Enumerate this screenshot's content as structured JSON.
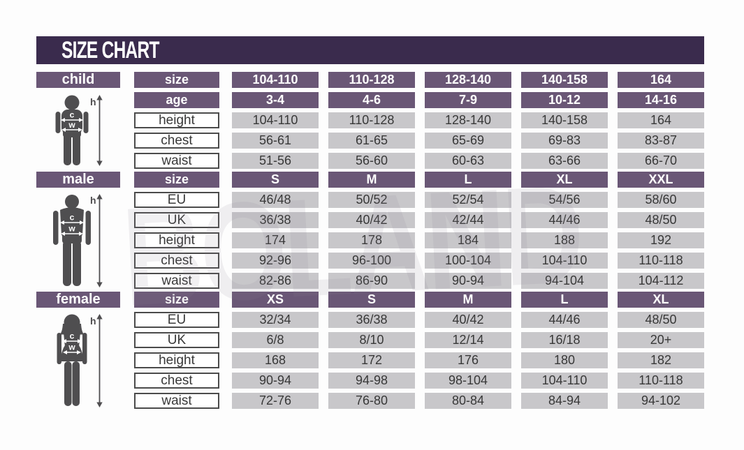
{
  "title": "SIZE CHART",
  "watermark": "BOLAND",
  "colors": {
    "background": "#fdfdfd",
    "title_bar": "#3a2b4d",
    "header_purple": "#6a5776",
    "cell_gray": "#c8c7ca",
    "label_border": "#4b4b4b",
    "text_dark": "#383838",
    "figure_gray": "#4f4e50"
  },
  "figure_legend": {
    "height": "h",
    "chest": "c",
    "waist": "w"
  },
  "chart_data": {
    "type": "table",
    "title": "SIZE CHART",
    "tables": [
      {
        "name": "child",
        "rows": [
          {
            "label": "size",
            "type": "header",
            "values": [
              "104-110",
              "110-128",
              "128-140",
              "140-158",
              "164"
            ]
          },
          {
            "label": "age",
            "type": "header",
            "values": [
              "3-4",
              "4-6",
              "7-9",
              "10-12",
              "14-16"
            ]
          },
          {
            "label": "height",
            "type": "data",
            "values": [
              "104-110",
              "110-128",
              "128-140",
              "140-158",
              "164"
            ]
          },
          {
            "label": "chest",
            "type": "data",
            "values": [
              "56-61",
              "61-65",
              "65-69",
              "69-83",
              "83-87"
            ]
          },
          {
            "label": "waist",
            "type": "data",
            "values": [
              "51-56",
              "56-60",
              "60-63",
              "63-66",
              "66-70"
            ]
          }
        ]
      },
      {
        "name": "male",
        "rows": [
          {
            "label": "size",
            "type": "header",
            "values": [
              "S",
              "M",
              "L",
              "XL",
              "XXL"
            ]
          },
          {
            "label": "EU",
            "type": "data",
            "values": [
              "46/48",
              "50/52",
              "52/54",
              "54/56",
              "58/60"
            ]
          },
          {
            "label": "UK",
            "type": "data",
            "values": [
              "36/38",
              "40/42",
              "42/44",
              "44/46",
              "48/50"
            ]
          },
          {
            "label": "height",
            "type": "data",
            "values": [
              "174",
              "178",
              "184",
              "188",
              "192"
            ]
          },
          {
            "label": "chest",
            "type": "data",
            "values": [
              "92-96",
              "96-100",
              "100-104",
              "104-110",
              "110-118"
            ]
          },
          {
            "label": "waist",
            "type": "data",
            "values": [
              "82-86",
              "86-90",
              "90-94",
              "94-104",
              "104-112"
            ]
          }
        ]
      },
      {
        "name": "female",
        "rows": [
          {
            "label": "size",
            "type": "header",
            "values": [
              "XS",
              "S",
              "M",
              "L",
              "XL"
            ]
          },
          {
            "label": "EU",
            "type": "data",
            "values": [
              "32/34",
              "36/38",
              "40/42",
              "44/46",
              "48/50"
            ]
          },
          {
            "label": "UK",
            "type": "data",
            "values": [
              "6/8",
              "8/10",
              "12/14",
              "16/18",
              "20+"
            ]
          },
          {
            "label": "height",
            "type": "data",
            "values": [
              "168",
              "172",
              "176",
              "180",
              "182"
            ]
          },
          {
            "label": "chest",
            "type": "data",
            "values": [
              "90-94",
              "94-98",
              "98-104",
              "104-110",
              "110-118"
            ]
          },
          {
            "label": "waist",
            "type": "data",
            "values": [
              "72-76",
              "76-80",
              "80-84",
              "84-94",
              "94-102"
            ]
          }
        ]
      }
    ]
  }
}
